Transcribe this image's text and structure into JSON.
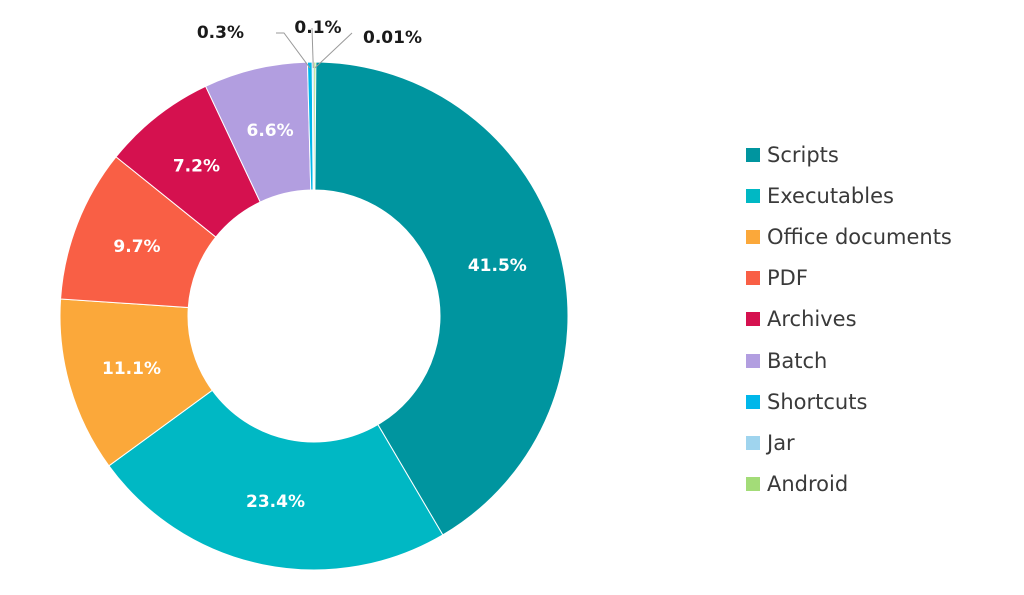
{
  "chart_data": {
    "type": "pie",
    "variant": "donut",
    "categories": [
      "Scripts",
      "Executables",
      "Office documents",
      "PDF",
      "Archives",
      "Batch",
      "Shortcuts",
      "Jar",
      "Android"
    ],
    "values": [
      41.5,
      23.4,
      11.1,
      9.7,
      7.2,
      6.6,
      0.3,
      0.1,
      0.01
    ],
    "labels": [
      "41.5%",
      "23.4%",
      "11.1%",
      "9.7%",
      "7.2%",
      "6.6%",
      "0.3%",
      "0.1%",
      "0.01%"
    ],
    "colors": [
      "#00959f",
      "#00b8c4",
      "#fba83a",
      "#f95f45",
      "#d5114f",
      "#b29ee0",
      "#00b7ea",
      "#9fd4ee",
      "#a3dc78"
    ],
    "legend_position": "right",
    "title": ""
  }
}
